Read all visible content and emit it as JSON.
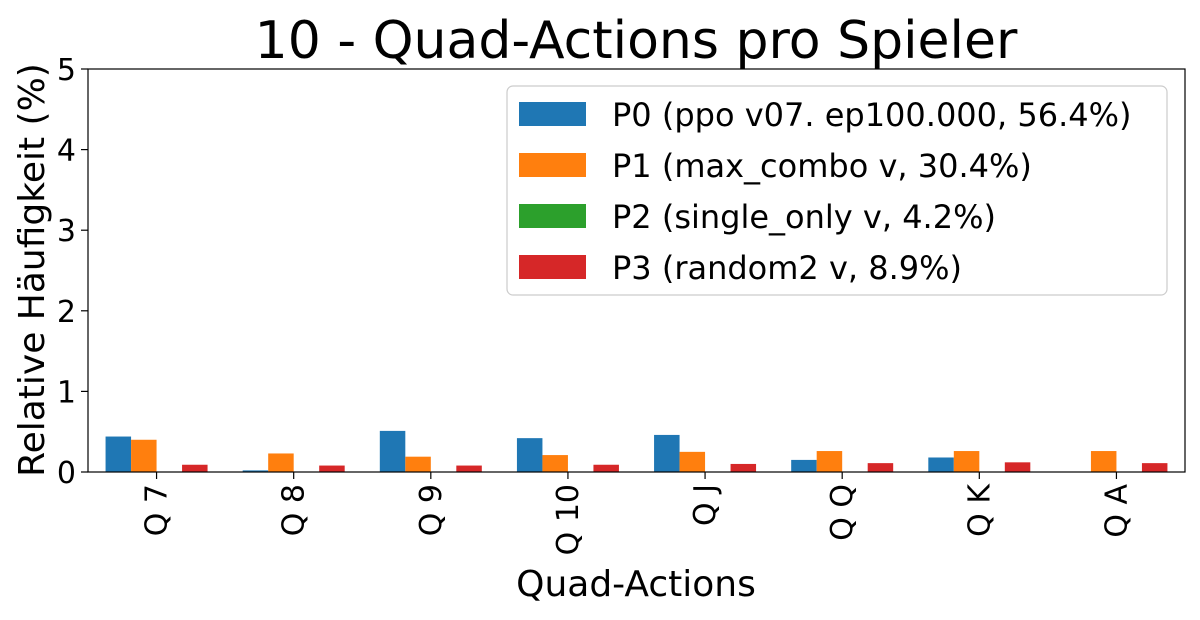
{
  "chart_data": {
    "type": "bar",
    "title": "10 - Quad-Actions pro Spieler",
    "xlabel": "Quad-Actions",
    "ylabel": "Relative Häufigkeit (%)",
    "ylim": [
      0,
      5
    ],
    "yticks": [
      "0",
      "1",
      "2",
      "3",
      "4",
      "5"
    ],
    "categories": [
      "Q 7",
      "Q 8",
      "Q 9",
      "Q 10",
      "Q J",
      "Q Q",
      "Q K",
      "Q A"
    ],
    "series": [
      {
        "name": "P0 (ppo v07. ep100.000, 56.4%)",
        "color": "#1f77b4",
        "values": [
          0.44,
          0.02,
          0.51,
          0.42,
          0.46,
          0.15,
          0.18,
          0.0
        ]
      },
      {
        "name": "P1 (max_combo v, 30.4%)",
        "color": "#ff7f0e",
        "values": [
          0.4,
          0.23,
          0.19,
          0.21,
          0.25,
          0.26,
          0.26,
          0.26
        ]
      },
      {
        "name": "P2 (single_only v, 4.2%)",
        "color": "#2ca02c",
        "values": [
          0.0,
          0.0,
          0.0,
          0.0,
          0.0,
          0.0,
          0.0,
          0.0
        ]
      },
      {
        "name": "P3 (random2 v, 8.9%)",
        "color": "#d62728",
        "values": [
          0.09,
          0.08,
          0.08,
          0.09,
          0.1,
          0.11,
          0.12,
          0.11
        ]
      }
    ],
    "grid": false,
    "legend_position": "top-right"
  }
}
